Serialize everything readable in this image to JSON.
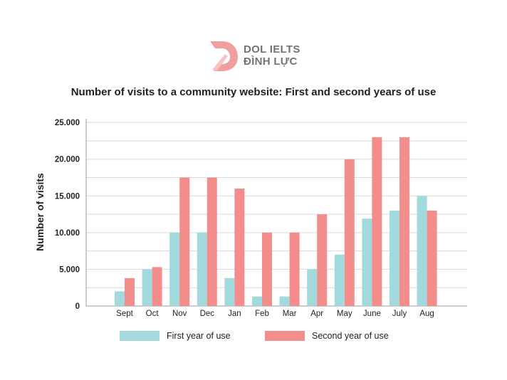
{
  "brand": {
    "line1": "DOL IELTS",
    "line2": "ĐÌNH LỰC",
    "logo_color": "#ef9f9e"
  },
  "chart_data": {
    "type": "bar",
    "title": "Number of visits to a community website: First and second years of use",
    "xlabel": "",
    "ylabel": "Number of visits",
    "ylim": [
      0,
      25500
    ],
    "yticks": [
      0,
      5000,
      10000,
      15000,
      20000,
      25000
    ],
    "ytick_labels": [
      "0",
      "5.000",
      "10.000",
      "15.000",
      "20.000",
      "25.000"
    ],
    "categories": [
      "Sept",
      "Oct",
      "Nov",
      "Dec",
      "Jan",
      "Feb",
      "Mar",
      "Apr",
      "May",
      "June",
      "July",
      "Aug"
    ],
    "series": [
      {
        "name": "First year of use",
        "color": "#a1d9dc",
        "values": [
          2000,
          5000,
          10000,
          10000,
          3800,
          1300,
          1300,
          5000,
          7000,
          11900,
          13000,
          15000
        ]
      },
      {
        "name": "Second year of use",
        "color": "#f28d8c",
        "values": [
          3800,
          5300,
          17500,
          17500,
          16000,
          10000,
          10000,
          12500,
          20000,
          23000,
          23000,
          13000
        ]
      }
    ],
    "grid": true,
    "legend": "bottom"
  }
}
